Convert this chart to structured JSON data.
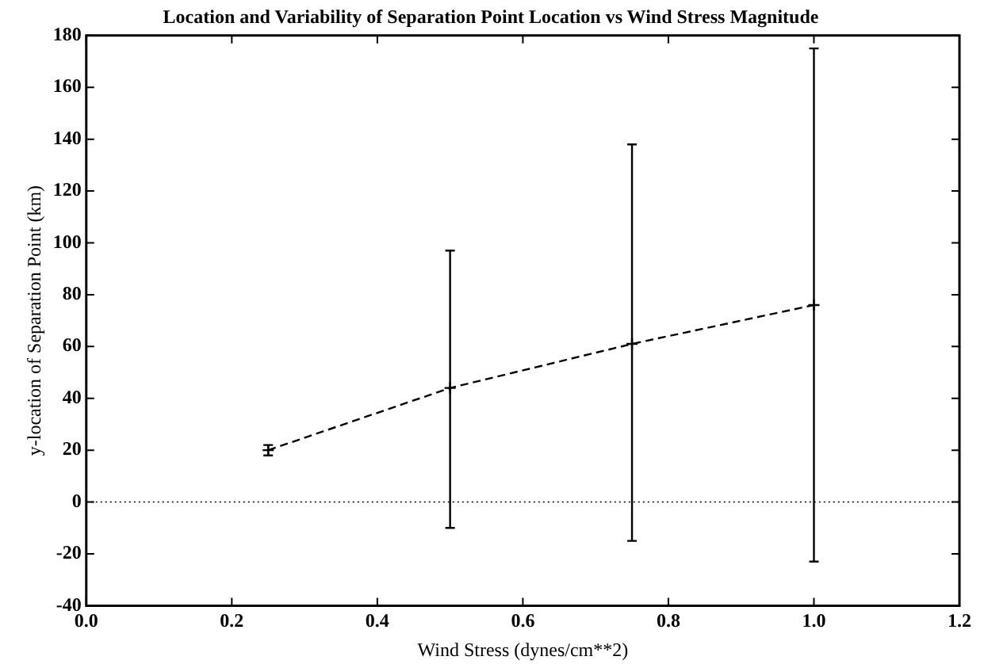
{
  "chart_data": {
    "type": "line",
    "title": "Location and Variability of Separation Point Location vs Wind Stress Magnitude",
    "xlabel": "Wind Stress (dynes/cm**2)",
    "ylabel": "y-location of Separation Point (km)",
    "x": [
      0.25,
      0.5,
      0.75,
      1.0
    ],
    "series": [
      {
        "color": "#000000",
        "values": [
          20,
          44,
          61,
          76
        ],
        "errors": [
          [
            18,
            22
          ],
          [
            -10,
            97
          ],
          [
            -15,
            138
          ],
          [
            -23,
            175
          ]
        ]
      }
    ],
    "xlim": [
      0,
      1.2
    ],
    "xticks": [
      {
        "value": 0,
        "label": "0.0"
      },
      0.2,
      0.4,
      0.6,
      0.8,
      {
        "value": 1,
        "label": "1.0"
      },
      1.2
    ],
    "ylim": [
      -40,
      180
    ],
    "yticks": [
      -40,
      -20,
      0,
      20,
      40,
      60,
      80,
      100,
      120,
      140,
      160,
      180
    ],
    "ref_lines": [
      {
        "axis": "y",
        "value": 0,
        "line_style": "dotted",
        "color": "#000000"
      }
    ],
    "grid": false,
    "legend": false,
    "marker": "cross",
    "line_style": "dashed"
  }
}
